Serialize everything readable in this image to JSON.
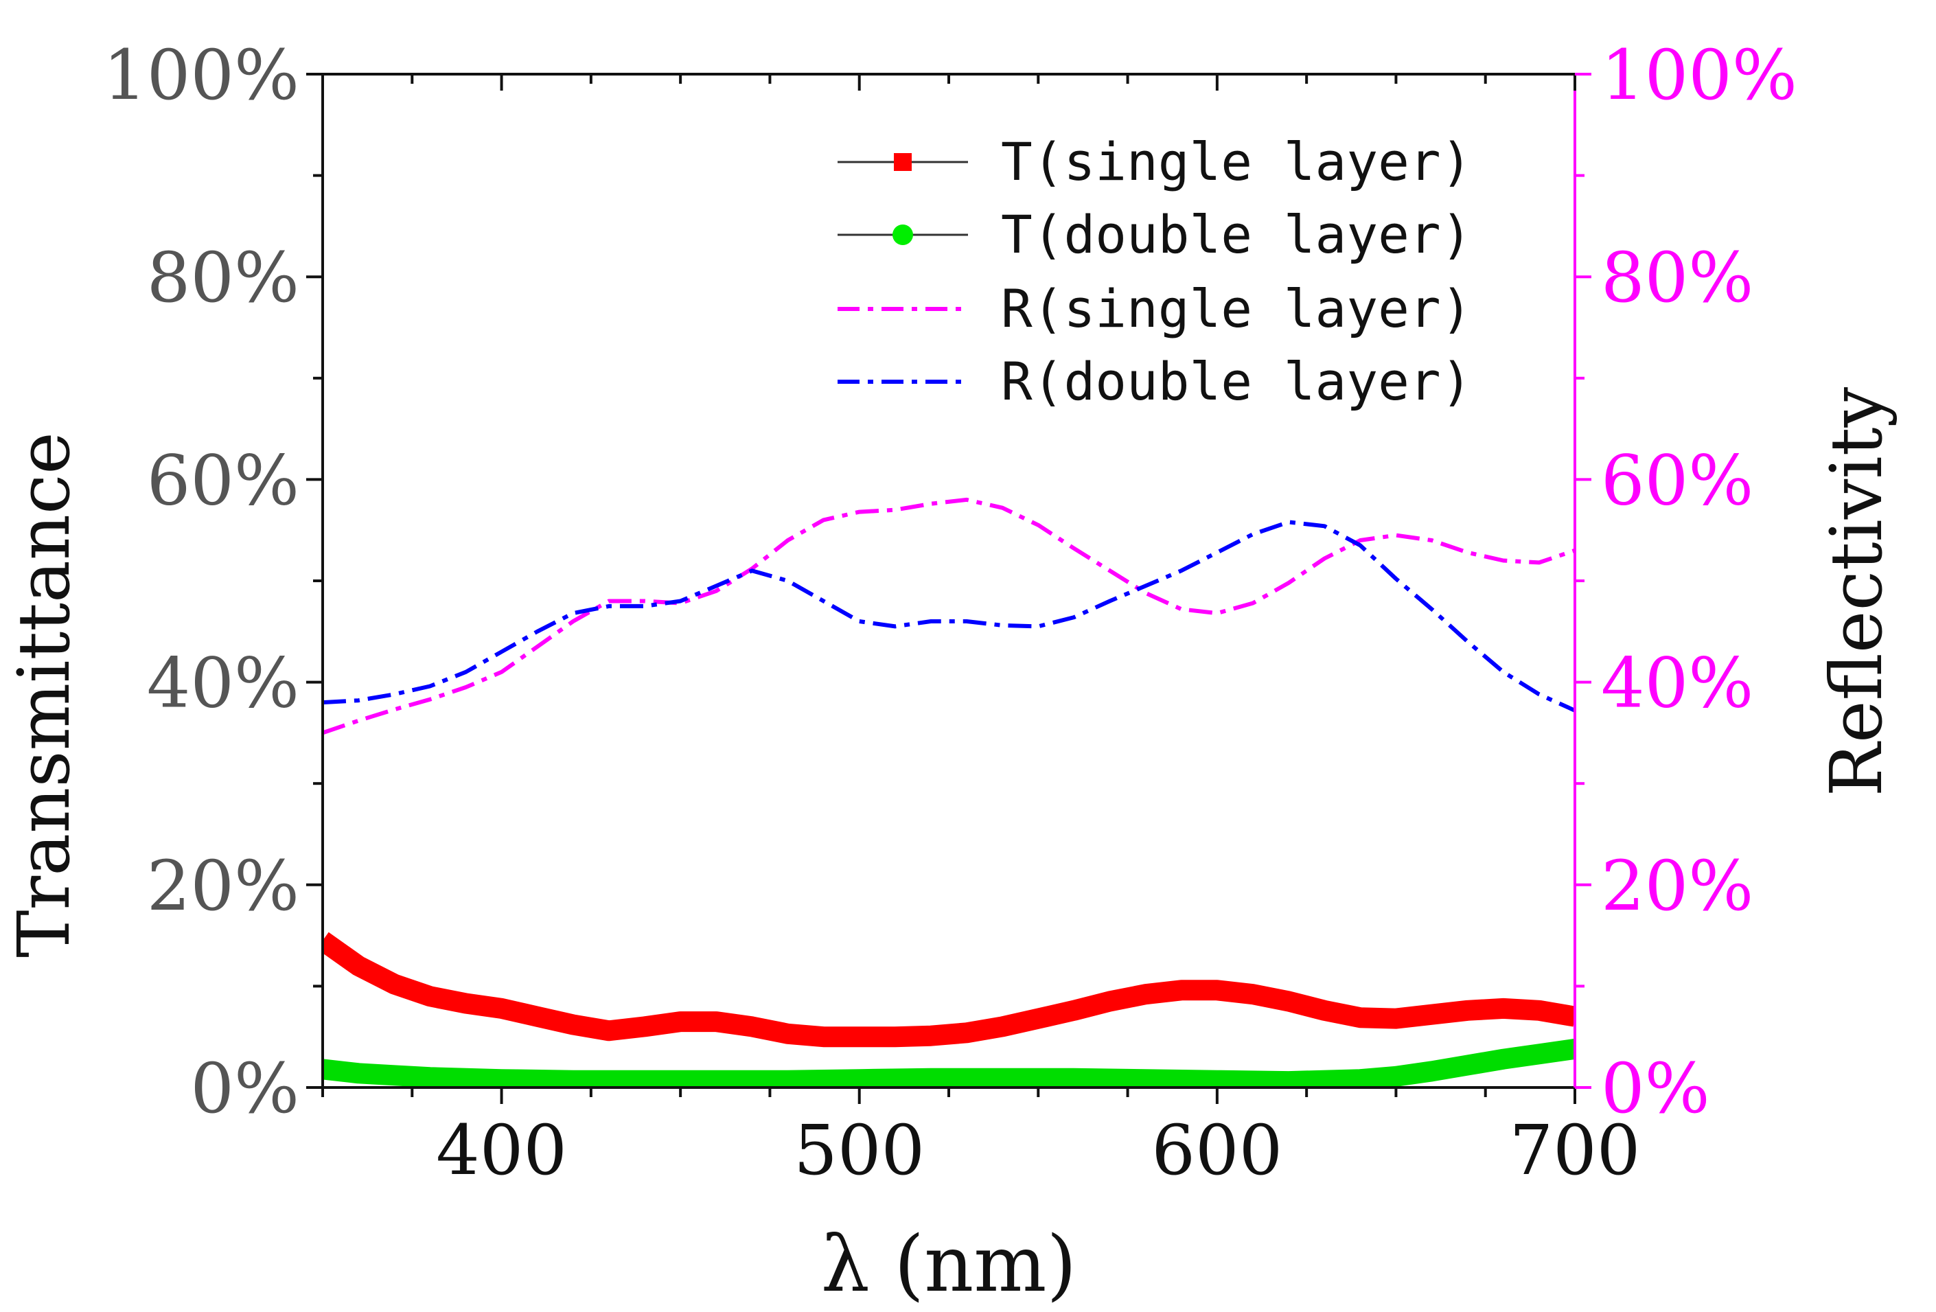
{
  "chart_data": {
    "type": "line",
    "xlabel": "λ (nm)",
    "ylabel_left": "Transmittance",
    "ylabel_right": "Reflectivity",
    "xlim": [
      350,
      700
    ],
    "ylim_left": [
      0,
      100
    ],
    "ylim_right": [
      0,
      100
    ],
    "x_ticks": [
      {
        "value": 400,
        "label": "400"
      },
      {
        "value": 500,
        "label": "500"
      },
      {
        "value": 600,
        "label": "600"
      },
      {
        "value": 700,
        "label": "700"
      }
    ],
    "y_left_ticks": [
      {
        "value": 0,
        "label": "0%"
      },
      {
        "value": 20,
        "label": "20%"
      },
      {
        "value": 40,
        "label": "40%"
      },
      {
        "value": 60,
        "label": "60%"
      },
      {
        "value": 80,
        "label": "80%"
      },
      {
        "value": 100,
        "label": "100%"
      }
    ],
    "y_right_ticks": [
      {
        "value": 0,
        "label": "0%"
      },
      {
        "value": 20,
        "label": "20%"
      },
      {
        "value": 40,
        "label": "40%"
      },
      {
        "value": 60,
        "label": "60%"
      },
      {
        "value": 80,
        "label": "80%"
      },
      {
        "value": 100,
        "label": "100%"
      }
    ],
    "legend_position": "top-right",
    "series": [
      {
        "name": "T(single layer)",
        "axis": "left",
        "color": "#ff0000",
        "style": "thick-marker",
        "x": [
          350,
          360,
          370,
          380,
          390,
          400,
          410,
          420,
          430,
          440,
          450,
          460,
          470,
          480,
          490,
          500,
          510,
          520,
          530,
          540,
          550,
          560,
          570,
          580,
          590,
          600,
          610,
          620,
          630,
          640,
          650,
          660,
          670,
          680,
          690,
          700
        ],
        "values": [
          14.5,
          12.0,
          10.2,
          9.0,
          8.3,
          7.8,
          7.0,
          6.2,
          5.6,
          6.0,
          6.5,
          6.5,
          6.0,
          5.3,
          5.0,
          5.0,
          5.0,
          5.1,
          5.4,
          6.0,
          6.8,
          7.6,
          8.5,
          9.2,
          9.6,
          9.6,
          9.2,
          8.5,
          7.6,
          6.9,
          6.8,
          7.2,
          7.6,
          7.8,
          7.6,
          7.0
        ]
      },
      {
        "name": "T(double layer)",
        "axis": "left",
        "color": "#00dd00",
        "style": "thick-marker",
        "x": [
          350,
          360,
          370,
          380,
          390,
          400,
          420,
          440,
          460,
          480,
          500,
          520,
          540,
          560,
          580,
          600,
          620,
          640,
          650,
          660,
          670,
          680,
          690,
          700
        ],
        "values": [
          1.8,
          1.4,
          1.2,
          1.0,
          0.9,
          0.8,
          0.7,
          0.7,
          0.7,
          0.7,
          0.8,
          0.9,
          0.9,
          0.9,
          0.8,
          0.7,
          0.6,
          0.8,
          1.1,
          1.6,
          2.2,
          2.8,
          3.3,
          3.8
        ]
      },
      {
        "name": "R(single layer)",
        "axis": "right",
        "color": "#ff00ff",
        "style": "dash-dot",
        "x": [
          350,
          360,
          370,
          380,
          390,
          400,
          410,
          420,
          430,
          440,
          450,
          460,
          470,
          480,
          490,
          500,
          510,
          520,
          530,
          540,
          550,
          560,
          570,
          580,
          590,
          600,
          610,
          620,
          630,
          640,
          650,
          660,
          670,
          680,
          690,
          700
        ],
        "values": [
          35.0,
          36.2,
          37.3,
          38.3,
          39.5,
          41.0,
          43.5,
          46.0,
          48.0,
          48.0,
          47.8,
          49.0,
          51.2,
          54.0,
          56.0,
          56.8,
          57.0,
          57.6,
          58.0,
          57.2,
          55.5,
          53.2,
          51.0,
          48.8,
          47.2,
          46.8,
          47.8,
          49.8,
          52.2,
          54.0,
          54.5,
          54.0,
          52.8,
          52.0,
          51.8,
          53.0
        ]
      },
      {
        "name": "R(double layer)",
        "axis": "right",
        "color": "#0000ff",
        "style": "dash-dot",
        "x": [
          350,
          360,
          370,
          380,
          390,
          400,
          410,
          420,
          430,
          440,
          450,
          460,
          470,
          480,
          490,
          500,
          510,
          520,
          530,
          540,
          550,
          560,
          570,
          580,
          590,
          600,
          610,
          620,
          630,
          640,
          650,
          660,
          670,
          680,
          690,
          700
        ],
        "values": [
          38.0,
          38.2,
          38.8,
          39.6,
          41.0,
          43.0,
          45.0,
          46.8,
          47.5,
          47.5,
          48.0,
          49.5,
          51.0,
          50.0,
          48.0,
          46.0,
          45.5,
          46.0,
          46.0,
          45.6,
          45.5,
          46.4,
          48.0,
          49.5,
          51.0,
          52.8,
          54.6,
          55.8,
          55.4,
          53.5,
          50.2,
          47.2,
          44.0,
          41.0,
          38.8,
          37.2
        ]
      }
    ]
  }
}
